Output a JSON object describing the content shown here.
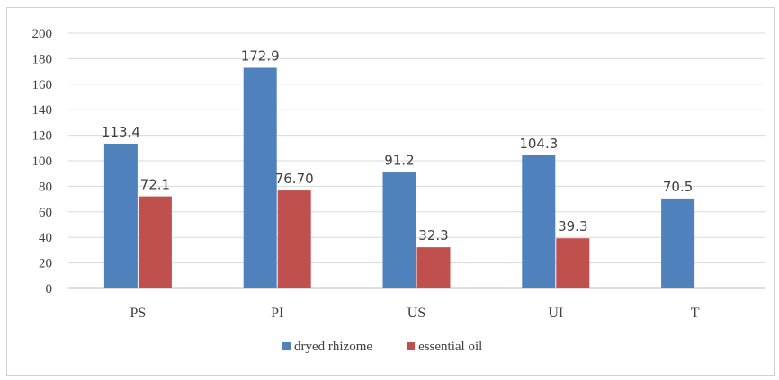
{
  "chart_data": {
    "type": "bar",
    "categories": [
      "PS",
      "PI",
      "US",
      "UI",
      "T"
    ],
    "series": [
      {
        "name": "dryed rhizome",
        "color": "#4f81bd",
        "values": [
          113.4,
          172.9,
          91.2,
          104.3,
          70.5
        ],
        "labels": [
          "113.4",
          "172.9",
          "91.2",
          "104.3",
          "70.5"
        ]
      },
      {
        "name": "essential oil",
        "color": "#c0504d",
        "values": [
          72.1,
          76.7,
          32.3,
          39.3,
          null
        ],
        "labels": [
          "72.1",
          "76.70",
          "32.3",
          "39.3",
          null
        ]
      }
    ],
    "ylim": [
      0,
      200
    ],
    "yticks": [
      0,
      20,
      40,
      60,
      80,
      100,
      120,
      140,
      160,
      180,
      200
    ],
    "grid": true,
    "legend": "bottom"
  }
}
